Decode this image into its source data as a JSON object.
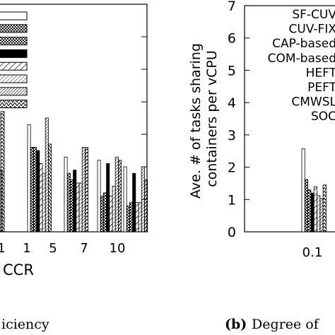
{
  "chart_data": [
    {
      "type": "bar",
      "xlabel": "CCR",
      "caption": "iciency",
      "categories": [
        "1",
        "5",
        "7",
        "10"
      ],
      "partial_tick_label": "1",
      "series": [
        {
          "name": "SF-CUV",
          "values": [
            3.3,
            2.3,
            2.2,
            2.0
          ]
        },
        {
          "name": "CUV-FIX",
          "values": [
            2.6,
            1.8,
            1.1,
            0.8
          ]
        },
        {
          "name": "CAP-based",
          "values": [
            2.6,
            1.6,
            1.2,
            0.9
          ]
        },
        {
          "name": "COM-based",
          "values": [
            2.5,
            1.9,
            2.1,
            1.8
          ]
        },
        {
          "name": "HEFT",
          "values": [
            2.1,
            1.5,
            1.1,
            0.9
          ]
        },
        {
          "name": "PEFT",
          "values": [
            1.8,
            1.5,
            1.4,
            0.9
          ]
        },
        {
          "name": "CMWSL",
          "values": [
            3.5,
            2.6,
            2.3,
            2.0
          ]
        },
        {
          "name": "SOC",
          "values": [
            2.7,
            2.6,
            2.2,
            1.6
          ]
        }
      ],
      "left_edge_bars": [
        1.9,
        3.7
      ],
      "ylim": [
        0,
        7
      ]
    },
    {
      "type": "bar",
      "ylabel": "Ave. # of tasks sharing containers per vCPU",
      "caption_label": "(b)",
      "caption_text": "Degree of",
      "categories": [
        "0.1"
      ],
      "ylim": [
        0,
        7
      ],
      "yticks": [
        "0",
        "1",
        "2",
        "3",
        "4",
        "5",
        "6",
        "7"
      ],
      "legend": [
        "SF-CUV",
        "CUV-FIX",
        "CAP-based",
        "COM-based",
        "HEFT",
        "PEFT",
        "CMWSL",
        "SOC"
      ],
      "series": [
        {
          "name": "SF-CUV",
          "values": [
            2.57
          ]
        },
        {
          "name": "CUV-FIX",
          "values": [
            1.62
          ]
        },
        {
          "name": "CAP-based",
          "values": [
            1.3
          ]
        },
        {
          "name": "COM-based",
          "values": [
            1.2
          ]
        },
        {
          "name": "HEFT",
          "values": [
            1.4
          ]
        },
        {
          "name": "PEFT",
          "values": [
            1.12
          ]
        },
        {
          "name": "CMWSL",
          "values": [
            1.03
          ]
        },
        {
          "name": "SOC",
          "values": [
            1.45
          ]
        }
      ]
    }
  ],
  "colors": {
    "fill": "#ffffff",
    "stroke": "#000000",
    "solid": "#000000"
  },
  "patterns": [
    "blank",
    "crosshatch",
    "checker",
    "solid",
    "stripe-wide",
    "stripe-thin",
    "stripe-dense",
    "zigzag"
  ]
}
